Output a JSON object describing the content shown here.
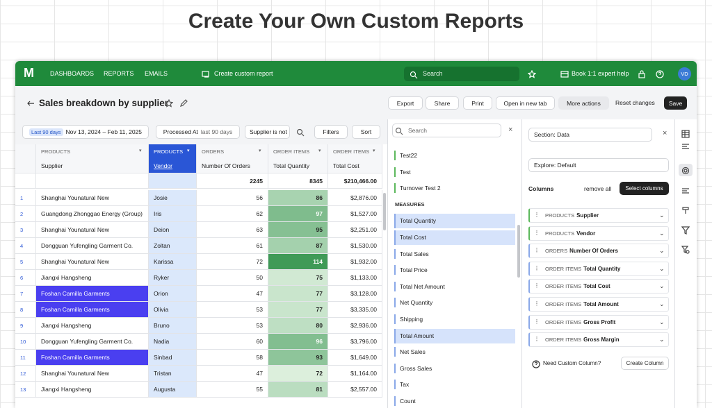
{
  "headline": "Create Your Own Custom Reports",
  "nav": {
    "logo": "M",
    "items": [
      "DASHBOARDS",
      "REPORTS",
      "EMAILS"
    ],
    "create": "Create custom report",
    "search": "Search",
    "book": "Book 1:1 expert help",
    "avatar": "VD"
  },
  "toolbar": {
    "title": "Sales breakdown by supplier",
    "buttons": [
      "Export",
      "Share",
      "Print",
      "Open in new tab",
      "More actions"
    ],
    "reset": "Reset changes",
    "save": "Save"
  },
  "filters": {
    "badge": "Last 90 days",
    "range": "Nov 13, 2024 – Feb 11, 2025",
    "processed": "Processed At",
    "processed_value": "last 90 days",
    "supplier": "Supplier is not",
    "filters": "Filters",
    "sort": "Sort"
  },
  "table": {
    "columns": [
      {
        "group": "PRODUCTS",
        "name": "Supplier"
      },
      {
        "group": "PRODUCTS",
        "name": "Vendor"
      },
      {
        "group": "ORDERS",
        "name": "Number Of Orders"
      },
      {
        "group": "ORDER ITEMS",
        "name": "Total Quantity"
      },
      {
        "group": "ORDER ITEMS",
        "name": "Total Cost"
      }
    ],
    "totals": [
      null,
      null,
      2245,
      8345,
      "$210,466.00"
    ],
    "selected_rows": [
      7,
      8,
      11
    ],
    "rows": [
      [
        1,
        "Shanghai Younatural New",
        "Josie",
        56,
        86,
        "$2,876.00"
      ],
      [
        2,
        "Guangdong Zhonggao Energy (Group)",
        "Iris",
        62,
        97,
        "$1,527.00"
      ],
      [
        3,
        "Shanghai Younatural New",
        "Deion",
        63,
        95,
        "$2,251.00"
      ],
      [
        4,
        "Dongguan Yufengling Garment Co.",
        "Zoltan",
        61,
        87,
        "$1,530.00"
      ],
      [
        5,
        "Shanghai Younatural New",
        "Karissa",
        72,
        114,
        "$1,932.00"
      ],
      [
        6,
        "Jiangxi Hangsheng",
        "Ryker",
        50,
        75,
        "$1,133.00"
      ],
      [
        7,
        "Foshan Camilla Garments",
        "Orion",
        47,
        77,
        "$3,128.00"
      ],
      [
        8,
        "Foshan Camilla Garments",
        "Olivia",
        53,
        77,
        "$3,335.00"
      ],
      [
        9,
        "Jiangxi Hangsheng",
        "Bruno",
        53,
        80,
        "$2,936.00"
      ],
      [
        10,
        "Dongguan Yufengling Garment Co.",
        "Nadia",
        60,
        96,
        "$3,796.00"
      ],
      [
        11,
        "Foshan Camilla Garments",
        "Sinbad",
        58,
        93,
        "$1,649.00"
      ],
      [
        12,
        "Shanghai Younatural New",
        "Tristan",
        47,
        72,
        "$1,164.00"
      ],
      [
        13,
        "Jiangxi Hangsheng",
        "Augusta",
        55,
        81,
        "$2,557.00"
      ]
    ]
  },
  "fields": {
    "search": "Search",
    "dimensions": [
      "Test22",
      "Test",
      "Turnover Test 2"
    ],
    "measures_header": "MEASURES",
    "measures": [
      {
        "name": "Total Quantity",
        "selected": true
      },
      {
        "name": "Total Cost",
        "selected": true
      },
      {
        "name": "Total Sales",
        "selected": false
      },
      {
        "name": "Total Price",
        "selected": false
      },
      {
        "name": "Total Net Amount",
        "selected": false
      },
      {
        "name": "Net Quantity",
        "selected": false
      },
      {
        "name": "Shipping",
        "selected": false
      },
      {
        "name": "Total Amount",
        "selected": true
      },
      {
        "name": "Net Sales",
        "selected": false
      },
      {
        "name": "Gross Sales",
        "selected": false
      },
      {
        "name": "Tax",
        "selected": false
      },
      {
        "name": "Count",
        "selected": false
      }
    ]
  },
  "settings": {
    "section": "Section: Data",
    "explore": "Explore: Default",
    "columns_title": "Columns",
    "remove_all": "remove all",
    "select_columns": "Select columns",
    "columns": [
      {
        "group": "PRODUCTS",
        "name": "Supplier",
        "color": "#5cb85c"
      },
      {
        "group": "PRODUCTS",
        "name": "Vendor",
        "color": "#5cb85c"
      },
      {
        "group": "ORDERS",
        "name": "Number Of Orders",
        "color": "#8aa8e8"
      },
      {
        "group": "ORDER ITEMS",
        "name": "Total Quantity",
        "color": "#8aa8e8"
      },
      {
        "group": "ORDER ITEMS",
        "name": "Total Cost",
        "color": "#8aa8e8"
      },
      {
        "group": "ORDER ITEMS",
        "name": "Total Amount",
        "color": "#8aa8e8"
      },
      {
        "group": "ORDER ITEMS",
        "name": "Gross Profit",
        "color": "#8aa8e8"
      },
      {
        "group": "ORDER ITEMS",
        "name": "Gross Margin",
        "color": "#8aa8e8"
      }
    ],
    "custom": "Need Custom Column?",
    "create": "Create Column"
  }
}
